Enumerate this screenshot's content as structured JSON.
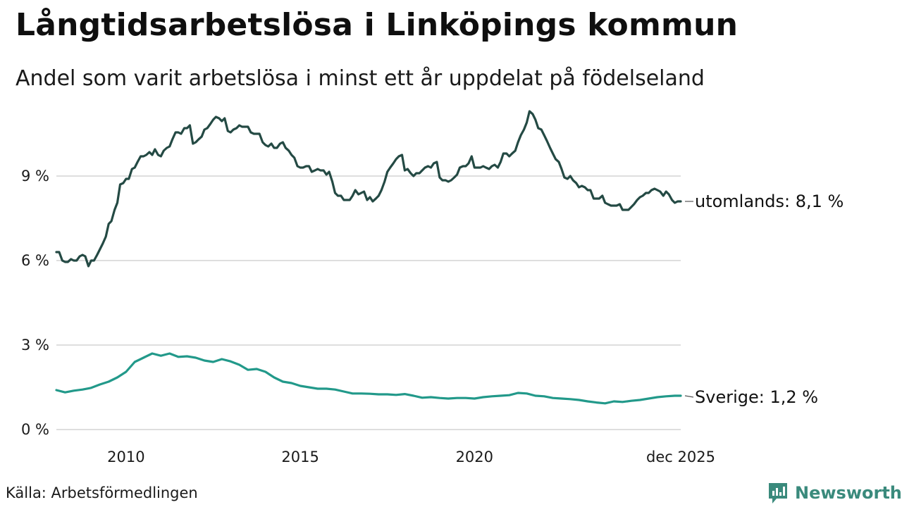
{
  "header": {
    "title": "Långtidsarbetslösa i Linköpings kommun",
    "subtitle": "Andel som varit arbetslösa i minst ett år uppdelat på födelseland"
  },
  "footer": {
    "source": "Källa: Arbetsförmedlingen",
    "brand": "Newsworthy",
    "brand_color": "#3a8a7c"
  },
  "chart_data": {
    "type": "line",
    "title": "Långtidsarbetslösa i Linköpings kommun",
    "subtitle": "Andel som varit arbetslösa i minst ett år uppdelat på födelseland",
    "xlabel": "",
    "ylabel": "",
    "xlim": [
      2008.0,
      2025.92
    ],
    "ylim": [
      0,
      11.5
    ],
    "grid": true,
    "yticks": [
      {
        "value": 0,
        "label": "0 %"
      },
      {
        "value": 3,
        "label": "3 %"
      },
      {
        "value": 6,
        "label": "6 %"
      },
      {
        "value": 9,
        "label": "9 %"
      }
    ],
    "xticks": [
      {
        "value": 2010,
        "label": "2010"
      },
      {
        "value": 2015,
        "label": "2015"
      },
      {
        "value": 2020,
        "label": "2020"
      },
      {
        "value": 2025.92,
        "label": "dec 2025"
      }
    ],
    "series": [
      {
        "name": "utomlands",
        "end_label": "utomlands: 8,1 %",
        "color": "#244a44",
        "x": [
          2008.0,
          2008.08,
          2008.17,
          2008.25,
          2008.33,
          2008.42,
          2008.5,
          2008.58,
          2008.67,
          2008.75,
          2008.83,
          2008.92,
          2009.0,
          2009.08,
          2009.17,
          2009.25,
          2009.33,
          2009.42,
          2009.5,
          2009.58,
          2009.67,
          2009.75,
          2009.83,
          2009.92,
          2010.0,
          2010.08,
          2010.17,
          2010.25,
          2010.33,
          2010.42,
          2010.5,
          2010.58,
          2010.67,
          2010.75,
          2010.83,
          2010.92,
          2011.0,
          2011.08,
          2011.17,
          2011.25,
          2011.33,
          2011.42,
          2011.5,
          2011.58,
          2011.67,
          2011.75,
          2011.83,
          2011.92,
          2012.0,
          2012.08,
          2012.17,
          2012.25,
          2012.33,
          2012.42,
          2012.5,
          2012.58,
          2012.67,
          2012.75,
          2012.83,
          2012.92,
          2013.0,
          2013.08,
          2013.17,
          2013.25,
          2013.33,
          2013.42,
          2013.5,
          2013.58,
          2013.67,
          2013.75,
          2013.83,
          2013.92,
          2014.0,
          2014.08,
          2014.17,
          2014.25,
          2014.33,
          2014.42,
          2014.5,
          2014.58,
          2014.67,
          2014.75,
          2014.83,
          2014.92,
          2015.0,
          2015.08,
          2015.17,
          2015.25,
          2015.33,
          2015.42,
          2015.5,
          2015.58,
          2015.67,
          2015.75,
          2015.83,
          2015.92,
          2016.0,
          2016.08,
          2016.17,
          2016.25,
          2016.33,
          2016.42,
          2016.5,
          2016.58,
          2016.67,
          2016.75,
          2016.83,
          2016.92,
          2017.0,
          2017.08,
          2017.17,
          2017.25,
          2017.33,
          2017.42,
          2017.5,
          2017.58,
          2017.67,
          2017.75,
          2017.83,
          2017.92,
          2018.0,
          2018.08,
          2018.17,
          2018.25,
          2018.33,
          2018.42,
          2018.5,
          2018.58,
          2018.67,
          2018.75,
          2018.83,
          2018.92,
          2019.0,
          2019.08,
          2019.17,
          2019.25,
          2019.33,
          2019.42,
          2019.5,
          2019.58,
          2019.67,
          2019.75,
          2019.83,
          2019.92,
          2020.0,
          2020.08,
          2020.17,
          2020.25,
          2020.33,
          2020.42,
          2020.5,
          2020.58,
          2020.67,
          2020.75,
          2020.83,
          2020.92,
          2021.0,
          2021.08,
          2021.17,
          2021.25,
          2021.33,
          2021.42,
          2021.5,
          2021.58,
          2021.67,
          2021.75,
          2021.83,
          2021.92,
          2022.0,
          2022.08,
          2022.17,
          2022.25,
          2022.33,
          2022.42,
          2022.5,
          2022.58,
          2022.67,
          2022.75,
          2022.83,
          2022.92,
          2023.0,
          2023.08,
          2023.17,
          2023.25,
          2023.33,
          2023.42,
          2023.5,
          2023.58,
          2023.67,
          2023.75,
          2023.83,
          2023.92,
          2024.0,
          2024.08,
          2024.17,
          2024.25,
          2024.33,
          2024.42,
          2024.5,
          2024.58,
          2024.67,
          2024.75,
          2024.83,
          2024.92,
          2025.0,
          2025.08,
          2025.17,
          2025.25,
          2025.33,
          2025.42,
          2025.5,
          2025.58,
          2025.67,
          2025.75,
          2025.83,
          2025.92
        ],
        "values": [
          6.3,
          6.3,
          6.0,
          5.95,
          5.95,
          6.05,
          6.0,
          6.0,
          6.15,
          6.2,
          6.15,
          5.8,
          6.0,
          6.0,
          6.2,
          6.4,
          6.6,
          6.85,
          7.3,
          7.4,
          7.8,
          8.05,
          8.7,
          8.75,
          8.9,
          8.9,
          9.25,
          9.3,
          9.5,
          9.7,
          9.7,
          9.75,
          9.85,
          9.75,
          9.95,
          9.75,
          9.7,
          9.9,
          10.0,
          10.05,
          10.3,
          10.55,
          10.55,
          10.5,
          10.7,
          10.7,
          10.8,
          10.15,
          10.2,
          10.3,
          10.4,
          10.65,
          10.7,
          10.85,
          11.0,
          11.1,
          11.05,
          10.95,
          11.05,
          10.6,
          10.55,
          10.65,
          10.7,
          10.8,
          10.75,
          10.75,
          10.75,
          10.55,
          10.5,
          10.5,
          10.5,
          10.2,
          10.1,
          10.05,
          10.15,
          10.0,
          10.0,
          10.15,
          10.2,
          10.0,
          9.9,
          9.75,
          9.65,
          9.35,
          9.3,
          9.3,
          9.35,
          9.35,
          9.15,
          9.2,
          9.25,
          9.2,
          9.2,
          9.05,
          9.15,
          8.8,
          8.4,
          8.3,
          8.3,
          8.15,
          8.15,
          8.15,
          8.3,
          8.5,
          8.35,
          8.4,
          8.45,
          8.15,
          8.25,
          8.1,
          8.2,
          8.3,
          8.5,
          8.8,
          9.15,
          9.3,
          9.45,
          9.6,
          9.7,
          9.75,
          9.2,
          9.25,
          9.1,
          9.0,
          9.1,
          9.1,
          9.2,
          9.3,
          9.35,
          9.3,
          9.45,
          9.5,
          8.95,
          8.85,
          8.85,
          8.8,
          8.85,
          8.95,
          9.05,
          9.3,
          9.35,
          9.35,
          9.45,
          9.7,
          9.3,
          9.3,
          9.3,
          9.35,
          9.3,
          9.25,
          9.35,
          9.4,
          9.3,
          9.5,
          9.8,
          9.8,
          9.7,
          9.8,
          9.9,
          10.2,
          10.45,
          10.65,
          10.9,
          11.3,
          11.2,
          11.0,
          10.7,
          10.65,
          10.45,
          10.25,
          10.0,
          9.8,
          9.6,
          9.5,
          9.25,
          8.95,
          8.9,
          9.0,
          8.85,
          8.75,
          8.6,
          8.65,
          8.6,
          8.5,
          8.5,
          8.2,
          8.2,
          8.2,
          8.3,
          8.05,
          8.0,
          7.95,
          7.95,
          7.95,
          8.0,
          7.8,
          7.8,
          7.8,
          7.9,
          8.0,
          8.15,
          8.25,
          8.3,
          8.4,
          8.4,
          8.5,
          8.55,
          8.5,
          8.45,
          8.3,
          8.45,
          8.35,
          8.15,
          8.05,
          8.1,
          8.1
        ]
      },
      {
        "name": "Sverige",
        "end_label": "Sverige: 1,2 %",
        "color": "#22998a",
        "x": [
          2008.0,
          2008.25,
          2008.5,
          2008.75,
          2009.0,
          2009.25,
          2009.5,
          2009.75,
          2010.0,
          2010.25,
          2010.5,
          2010.75,
          2011.0,
          2011.25,
          2011.5,
          2011.75,
          2012.0,
          2012.25,
          2012.5,
          2012.75,
          2013.0,
          2013.25,
          2013.5,
          2013.75,
          2014.0,
          2014.25,
          2014.5,
          2014.75,
          2015.0,
          2015.25,
          2015.5,
          2015.75,
          2016.0,
          2016.25,
          2016.5,
          2016.75,
          2017.0,
          2017.25,
          2017.5,
          2017.75,
          2018.0,
          2018.25,
          2018.5,
          2018.75,
          2019.0,
          2019.25,
          2019.5,
          2019.75,
          2020.0,
          2020.25,
          2020.5,
          2020.75,
          2021.0,
          2021.25,
          2021.5,
          2021.75,
          2022.0,
          2022.25,
          2022.5,
          2022.75,
          2023.0,
          2023.25,
          2023.5,
          2023.75,
          2024.0,
          2024.25,
          2024.5,
          2024.75,
          2025.0,
          2025.25,
          2025.5,
          2025.75,
          2025.92
        ],
        "values": [
          1.4,
          1.32,
          1.38,
          1.42,
          1.48,
          1.6,
          1.7,
          1.85,
          2.05,
          2.4,
          2.55,
          2.7,
          2.62,
          2.7,
          2.58,
          2.6,
          2.55,
          2.45,
          2.4,
          2.5,
          2.42,
          2.3,
          2.12,
          2.15,
          2.05,
          1.85,
          1.7,
          1.65,
          1.55,
          1.5,
          1.45,
          1.45,
          1.42,
          1.35,
          1.28,
          1.28,
          1.27,
          1.25,
          1.25,
          1.23,
          1.26,
          1.2,
          1.13,
          1.15,
          1.12,
          1.1,
          1.12,
          1.12,
          1.1,
          1.15,
          1.18,
          1.2,
          1.22,
          1.3,
          1.28,
          1.2,
          1.18,
          1.12,
          1.1,
          1.08,
          1.05,
          1.0,
          0.96,
          0.93,
          1.0,
          0.98,
          1.02,
          1.05,
          1.1,
          1.15,
          1.18,
          1.2,
          1.2
        ]
      }
    ]
  }
}
